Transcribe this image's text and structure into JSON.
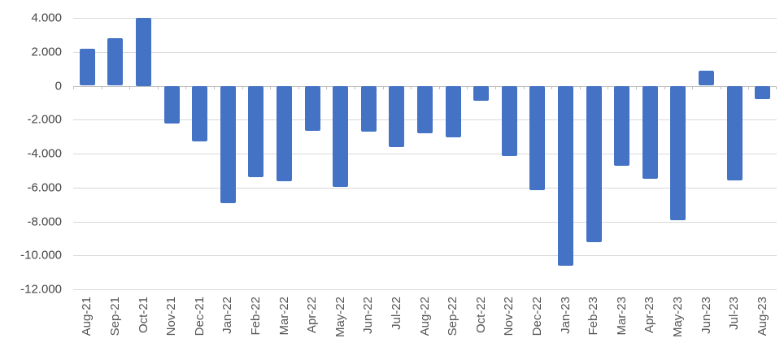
{
  "chart_data": {
    "type": "bar",
    "title": "",
    "categories": [
      "Aug-21",
      "Sep-21",
      "Oct-21",
      "Nov-21",
      "Dec-21",
      "Jan-22",
      "Feb-22",
      "Mar-22",
      "Apr-22",
      "May-22",
      "Jun-22",
      "Jul-22",
      "Aug-22",
      "Sep-22",
      "Oct-22",
      "Nov-22",
      "Dec-22",
      "Jan-23",
      "Feb-23",
      "Mar-23",
      "Apr-23",
      "May-23",
      "Jun-23",
      "Jul-23",
      "Aug-23"
    ],
    "values": [
      2200,
      2800,
      4000,
      -2250,
      -3300,
      -6900,
      -5400,
      -5650,
      -2650,
      -5950,
      -2700,
      -3600,
      -2800,
      -3050,
      -900,
      -4150,
      -6150,
      -10600,
      -9200,
      -4700,
      -5500,
      -7950,
      900,
      -5600,
      -800
    ],
    "ylim": [
      -12000,
      4000
    ],
    "ytick_interval": 2000,
    "yticks": [
      {
        "label": "4.000",
        "value": 4000
      },
      {
        "label": "2.000",
        "value": 2000
      },
      {
        "label": "0",
        "value": 0
      },
      {
        "label": "-2.000",
        "value": -2000
      },
      {
        "label": "-4.000",
        "value": -4000
      },
      {
        "label": "-6.000",
        "value": -6000
      },
      {
        "label": "-8.000",
        "value": -8000
      },
      {
        "label": "-10.000",
        "value": -10000
      },
      {
        "label": "-12.000",
        "value": -12000
      }
    ],
    "xlabel": "",
    "ylabel": "",
    "grid": true,
    "legend": "none",
    "x_label_rotation_deg": -90,
    "colors": {
      "bar": "#4472C4",
      "gridline": "#D9D9D9",
      "zero_axis_line": "#BFBFBF",
      "y_label_text": "#444444",
      "x_label_text": "#555555",
      "background": "#FFFFFF"
    }
  }
}
